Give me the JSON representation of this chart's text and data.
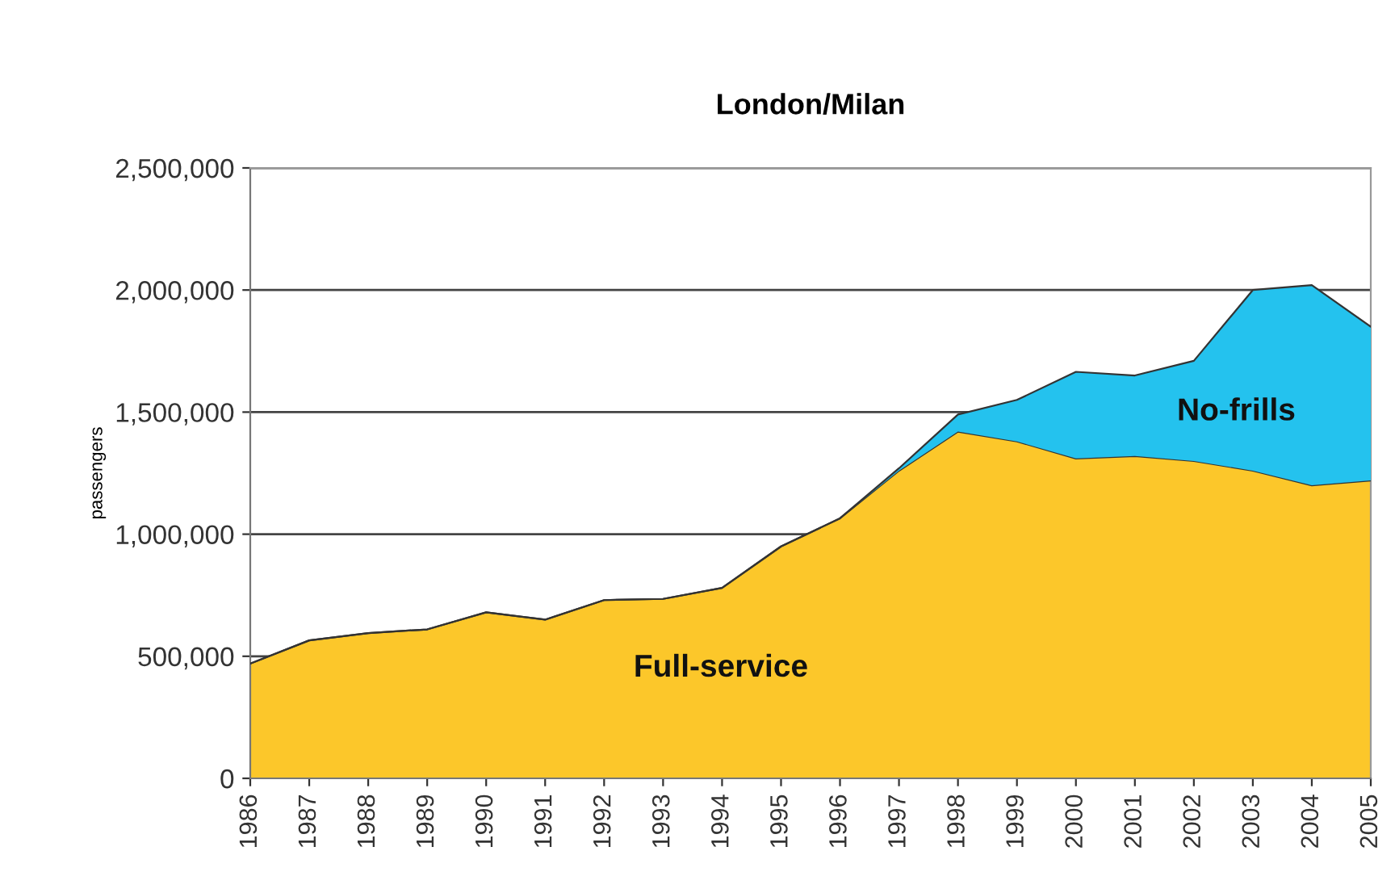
{
  "chart_data": {
    "type": "area",
    "title": "London/Milan",
    "ylabel": "passengers",
    "stacked": true,
    "categories": [
      "1986",
      "1987",
      "1988",
      "1989",
      "1990",
      "1991",
      "1992",
      "1993",
      "1994",
      "1995",
      "1996",
      "1997",
      "1998",
      "1999",
      "2000",
      "2001",
      "2002",
      "2003",
      "2004",
      "2005"
    ],
    "series": [
      {
        "name": "Full-service",
        "color": "#fcc72a",
        "values": [
          470000,
          565000,
          595000,
          610000,
          680000,
          650000,
          730000,
          735000,
          780000,
          950000,
          1065000,
          1260000,
          1420000,
          1380000,
          1310000,
          1320000,
          1300000,
          1260000,
          1200000,
          1220000
        ]
      },
      {
        "name": "No-frills",
        "color": "#24c2ee",
        "values": [
          0,
          0,
          0,
          0,
          0,
          0,
          0,
          0,
          0,
          0,
          0,
          10000,
          70000,
          170000,
          355000,
          330000,
          410000,
          740000,
          820000,
          630000
        ]
      }
    ],
    "ylim": [
      0,
      2500000
    ],
    "yticks": [
      {
        "value": 0,
        "label": "0"
      },
      {
        "value": 500000,
        "label": "500,000"
      },
      {
        "value": 1000000,
        "label": "1,000,000"
      },
      {
        "value": 1500000,
        "label": "1,500,000"
      },
      {
        "value": 2000000,
        "label": "2,000,000"
      },
      {
        "value": 2500000,
        "label": "2,500,000"
      }
    ],
    "grid": "y",
    "legend": false
  }
}
